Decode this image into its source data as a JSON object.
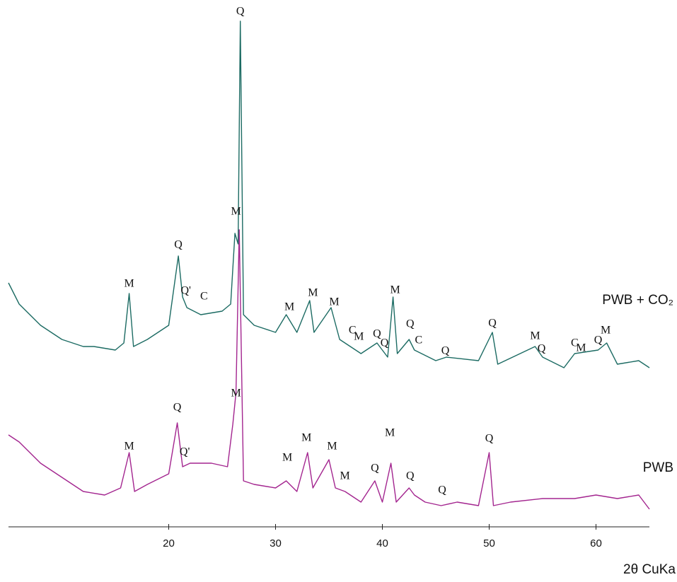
{
  "chart_data": {
    "type": "line",
    "xlabel": "2θ CuKa",
    "xlim": [
      5,
      65
    ],
    "xticks": [
      20,
      30,
      40,
      50,
      60
    ],
    "ylim": [
      0,
      73
    ],
    "series": [
      {
        "name": "PWB",
        "color": "#a3258f",
        "x": [
          5,
          6,
          7,
          8,
          10,
          12,
          14,
          15.5,
          16.3,
          16.8,
          18,
          20,
          20.8,
          21.3,
          22,
          24,
          25.5,
          26.0,
          26.3,
          26.6,
          27.0,
          28,
          30,
          31,
          32,
          33,
          33.5,
          35,
          35.6,
          36.5,
          38,
          39.3,
          40,
          40.8,
          41.3,
          42.5,
          43,
          44,
          45.5,
          47,
          49,
          50,
          50.4,
          52,
          55,
          58,
          60,
          62,
          64,
          65
        ],
        "values": [
          13.0,
          12.0,
          10.5,
          9.0,
          7.0,
          5.0,
          4.5,
          5.5,
          10.5,
          5.0,
          6.0,
          7.5,
          14.7,
          8.5,
          9.0,
          9.0,
          8.5,
          14.5,
          19.0,
          42.0,
          6.5,
          6.0,
          5.5,
          6.5,
          5.0,
          10.5,
          5.5,
          9.5,
          5.5,
          5.0,
          3.5,
          6.5,
          3.5,
          9.0,
          3.5,
          5.5,
          4.5,
          3.5,
          3.0,
          3.5,
          3.0,
          10.5,
          3.0,
          3.5,
          4.0,
          4.0,
          4.5,
          4.0,
          4.5,
          2.5
        ]
      },
      {
        "name": "PWB + CO₂",
        "color": "#1c6b63",
        "x": [
          5,
          6,
          8,
          10,
          12,
          13,
          15,
          15.8,
          16.3,
          16.7,
          18,
          20,
          20.9,
          21.3,
          21.7,
          23,
          25,
          25.8,
          26.2,
          26.5,
          26.7,
          27.0,
          28,
          30,
          31,
          32,
          33.2,
          33.6,
          35.2,
          36,
          37,
          38,
          39.5,
          40.5,
          41,
          41.4,
          42.5,
          43,
          45,
          46,
          49,
          50.3,
          50.8,
          54.3,
          55,
          57,
          58,
          60.2,
          61,
          62,
          64,
          65
        ],
        "values": [
          34.5,
          31.5,
          28.5,
          26.5,
          25.5,
          25.5,
          25.0,
          26.0,
          33.0,
          25.5,
          26.5,
          28.5,
          38.3,
          32.5,
          31.0,
          30.0,
          30.5,
          31.5,
          41.5,
          40.0,
          71.5,
          30.0,
          28.5,
          27.5,
          30.0,
          27.5,
          32.0,
          27.5,
          31.0,
          26.5,
          25.5,
          24.5,
          26.0,
          24.0,
          32.5,
          24.5,
          26.5,
          25.0,
          23.5,
          24.0,
          23.5,
          27.5,
          23.0,
          25.5,
          24.0,
          22.5,
          24.5,
          25.0,
          26.0,
          23.0,
          23.5,
          22.5
        ]
      }
    ],
    "annotations": [
      {
        "text": "M",
        "x": 16.3,
        "y": 34.3
      },
      {
        "text": "Q",
        "x": 20.9,
        "y": 39.8
      },
      {
        "text": "Q'",
        "x": 21.6,
        "y": 33.3
      },
      {
        "text": "C",
        "x": 23.3,
        "y": 32.5
      },
      {
        "text": "M",
        "x": 26.3,
        "y": 44.5
      },
      {
        "text": "Q",
        "x": 26.7,
        "y": 72.8
      },
      {
        "text": "M",
        "x": 31.3,
        "y": 31.0
      },
      {
        "text": "M",
        "x": 33.5,
        "y": 33.0
      },
      {
        "text": "M",
        "x": 35.5,
        "y": 31.7
      },
      {
        "text": "C",
        "x": 37.2,
        "y": 27.7
      },
      {
        "text": "M",
        "x": 37.8,
        "y": 26.8
      },
      {
        "text": "Q",
        "x": 39.5,
        "y": 27.2
      },
      {
        "text": "Q",
        "x": 40.2,
        "y": 25.9
      },
      {
        "text": "M",
        "x": 41.2,
        "y": 33.4
      },
      {
        "text": "Q",
        "x": 42.6,
        "y": 28.6
      },
      {
        "text": "C",
        "x": 43.4,
        "y": 26.3
      },
      {
        "text": "Q",
        "x": 45.9,
        "y": 24.8
      },
      {
        "text": "Q",
        "x": 50.3,
        "y": 28.7
      },
      {
        "text": "M",
        "x": 54.3,
        "y": 26.9
      },
      {
        "text": "Q",
        "x": 54.9,
        "y": 25.1
      },
      {
        "text": "C",
        "x": 58.0,
        "y": 25.9
      },
      {
        "text": "M",
        "x": 58.6,
        "y": 25.2
      },
      {
        "text": "Q",
        "x": 60.2,
        "y": 26.3
      },
      {
        "text": "M",
        "x": 60.9,
        "y": 27.7
      },
      {
        "text": "M",
        "x": 16.3,
        "y": 11.3
      },
      {
        "text": "Q",
        "x": 20.8,
        "y": 16.8
      },
      {
        "text": "Q'",
        "x": 21.5,
        "y": 10.5
      },
      {
        "text": "M",
        "x": 26.3,
        "y": 18.8
      },
      {
        "text": "M",
        "x": 31.1,
        "y": 9.7
      },
      {
        "text": "M",
        "x": 32.9,
        "y": 12.5
      },
      {
        "text": "M",
        "x": 35.3,
        "y": 11.3
      },
      {
        "text": "M",
        "x": 36.5,
        "y": 7.1
      },
      {
        "text": "Q",
        "x": 39.3,
        "y": 8.2
      },
      {
        "text": "M",
        "x": 40.7,
        "y": 13.2
      },
      {
        "text": "Q",
        "x": 42.6,
        "y": 7.1
      },
      {
        "text": "Q",
        "x": 45.6,
        "y": 5.1
      },
      {
        "text": "Q",
        "x": 50.0,
        "y": 12.4
      }
    ]
  }
}
